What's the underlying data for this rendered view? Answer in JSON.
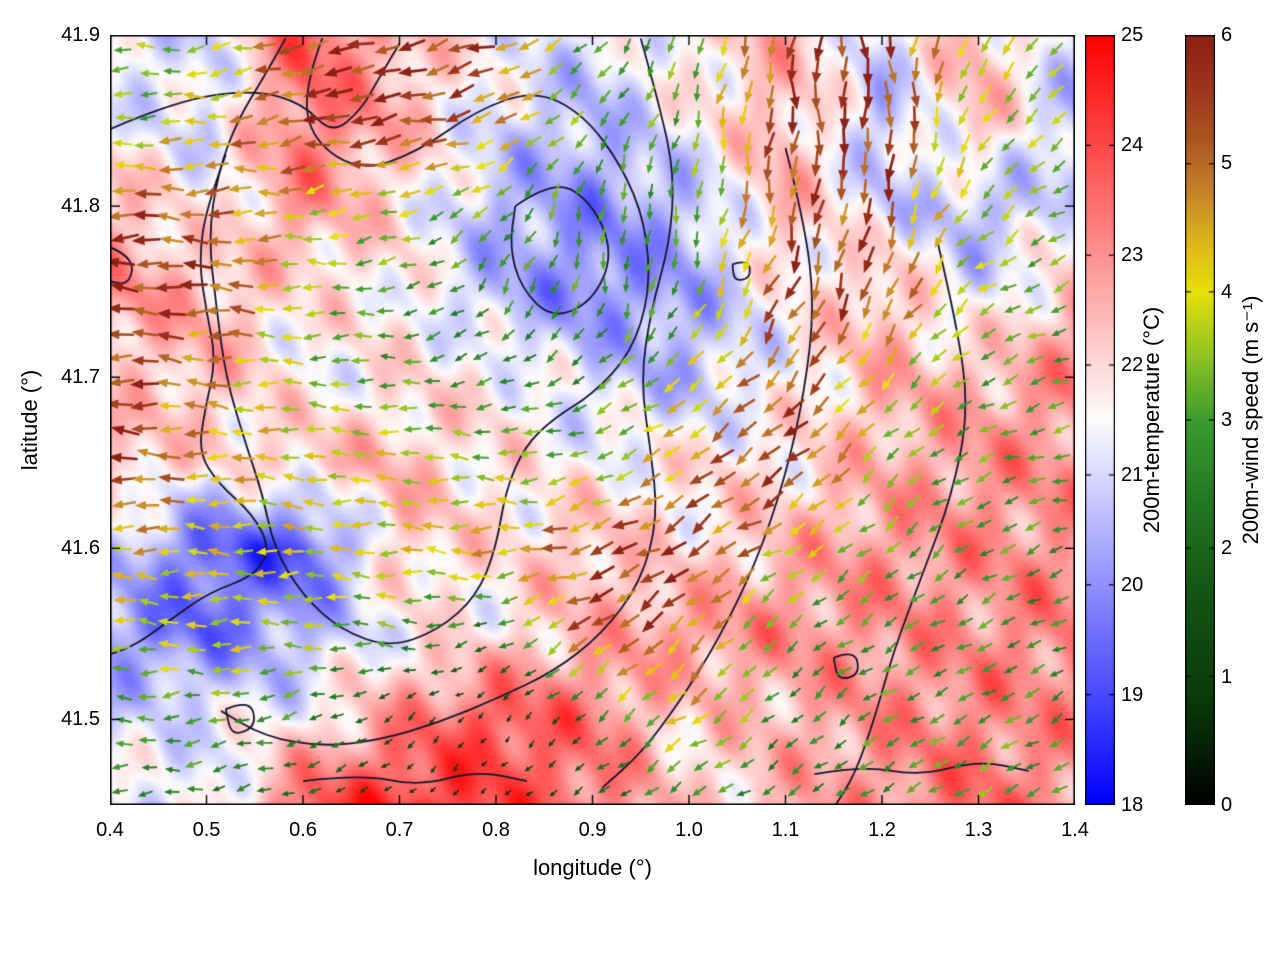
{
  "chart_data": {
    "type": "heatmap+quiver",
    "title": "",
    "xlabel": "longitude (°)",
    "ylabel": "latitude (°)",
    "x_range": [
      0.4,
      1.4
    ],
    "y_range": [
      41.45,
      41.9
    ],
    "x_ticks": [
      "0.4",
      "0.5",
      "0.6",
      "0.7",
      "0.8",
      "0.9",
      "1.0",
      "1.1",
      "1.2",
      "1.3",
      "1.4"
    ],
    "x_tick_values": [
      0.4,
      0.5,
      0.6,
      0.7,
      0.8,
      0.9,
      1.0,
      1.1,
      1.2,
      1.3,
      1.4
    ],
    "y_ticks": [
      "41.5",
      "41.6",
      "41.7",
      "41.8",
      "41.9"
    ],
    "y_tick_values": [
      41.5,
      41.6,
      41.7,
      41.8,
      41.9
    ],
    "grid_lon": [
      0.4,
      0.5,
      0.6,
      0.7,
      0.8,
      0.9,
      1.0,
      1.1,
      1.2,
      1.3,
      1.4
    ],
    "grid_lat": [
      41.9,
      41.85,
      41.8,
      41.75,
      41.7,
      41.65,
      41.6,
      41.55,
      41.5,
      41.45
    ],
    "temperature": {
      "label": "200m-temperature (°C)",
      "range": [
        18,
        25
      ],
      "ticks": [
        "18",
        "19",
        "20",
        "21",
        "22",
        "23",
        "24",
        "25"
      ],
      "tick_values": [
        18,
        19,
        20,
        21,
        22,
        23,
        24,
        25
      ],
      "grid": [
        [
          21.0,
          21.0,
          23.8,
          22.5,
          21.5,
          21.0,
          21.8,
          22.5,
          21.0,
          22.5,
          21.0
        ],
        [
          21.5,
          21.0,
          23.5,
          22.5,
          21.0,
          20.5,
          21.5,
          22.5,
          20.5,
          22.5,
          20.5
        ],
        [
          22.5,
          21.5,
          23.0,
          21.8,
          20.5,
          20.0,
          20.5,
          22.5,
          21.0,
          20.5,
          21.0
        ],
        [
          23.0,
          22.5,
          21.8,
          21.8,
          20.5,
          19.8,
          20.3,
          21.5,
          22.5,
          21.0,
          22.5
        ],
        [
          22.0,
          22.5,
          21.5,
          21.8,
          21.8,
          21.0,
          20.5,
          21.5,
          22.5,
          22.5,
          23.0
        ],
        [
          22.5,
          21.8,
          22.3,
          22.4,
          21.8,
          21.5,
          21.8,
          21.8,
          22.5,
          23.0,
          23.0
        ],
        [
          21.0,
          19.3,
          19.0,
          22.3,
          21.8,
          22.4,
          21.8,
          22.5,
          23.0,
          23.0,
          23.0
        ],
        [
          20.0,
          19.5,
          20.5,
          21.5,
          21.8,
          22.5,
          23.0,
          23.0,
          23.0,
          23.0,
          23.3
        ],
        [
          21.0,
          21.3,
          21.5,
          23.0,
          24.0,
          23.3,
          22.0,
          22.5,
          23.0,
          23.2,
          23.0
        ],
        [
          21.5,
          21.0,
          23.8,
          24.4,
          24.0,
          23.4,
          22.0,
          22.5,
          23.0,
          23.5,
          23.0
        ]
      ]
    },
    "wind": {
      "label": "200m-wind speed (m s⁻¹)",
      "range": [
        0,
        6
      ],
      "ticks": [
        "0",
        "1",
        "2",
        "3",
        "4",
        "5",
        "6"
      ],
      "tick_values": [
        0,
        1,
        2,
        3,
        4,
        5,
        6
      ],
      "color_stops": [
        [
          0.0,
          "#000000"
        ],
        [
          0.8,
          "#0a3a0a"
        ],
        [
          1.6,
          "#145214"
        ],
        [
          2.4,
          "#227a22"
        ],
        [
          3.0,
          "#3c9b2e"
        ],
        [
          3.5,
          "#8ec423"
        ],
        [
          4.0,
          "#e8e00a"
        ],
        [
          4.4,
          "#ddb31c"
        ],
        [
          4.8,
          "#c4802a"
        ],
        [
          5.2,
          "#aa5420"
        ],
        [
          5.6,
          "#9c341c"
        ],
        [
          6.0,
          "#8c2014"
        ]
      ],
      "u": [
        [
          -3.0,
          -3.5,
          -5.0,
          -5.5,
          -5.0,
          -2.0,
          -1.0,
          -1.0,
          0.0,
          -2.0,
          -2.5
        ],
        [
          -3.2,
          -4.0,
          -5.5,
          -5.8,
          -4.5,
          -2.0,
          -1.0,
          -0.5,
          0.5,
          -2.0,
          -3.0
        ],
        [
          -5.5,
          -5.0,
          -4.0,
          -3.5,
          -2.5,
          -0.5,
          -0.5,
          -1.0,
          -1.0,
          -2.5,
          -3.0
        ],
        [
          -5.8,
          -5.5,
          -3.5,
          -2.8,
          -1.5,
          -0.5,
          -1.0,
          -2.0,
          -2.0,
          -3.0,
          -3.0
        ],
        [
          -5.5,
          -4.5,
          -3.5,
          -3.0,
          -2.5,
          -2.5,
          -3.0,
          -3.5,
          -2.5,
          -2.8,
          -3.0
        ],
        [
          -5.8,
          -4.5,
          -4.0,
          -3.8,
          -3.5,
          -3.0,
          -4.0,
          -4.5,
          -2.5,
          -2.8,
          -3.0
        ],
        [
          -4.5,
          -4.0,
          -4.0,
          -4.0,
          -4.5,
          -5.0,
          -5.0,
          -3.5,
          -2.5,
          -2.5,
          -2.8
        ],
        [
          -3.5,
          -4.0,
          -3.5,
          -3.0,
          -2.0,
          -4.5,
          -3.5,
          -2.0,
          -2.5,
          -2.5,
          -2.5
        ],
        [
          -3.0,
          -3.0,
          -2.5,
          -1.0,
          -0.3,
          -1.5,
          -3.5,
          -2.0,
          -2.5,
          -2.5,
          -2.5
        ],
        [
          -2.5,
          -2.5,
          -2.0,
          -0.5,
          -0.4,
          -1.5,
          -2.5,
          -2.0,
          -2.5,
          -3.0,
          -2.5
        ]
      ],
      "v": [
        [
          0.0,
          -0.5,
          -1.5,
          -1.5,
          -2.0,
          -2.0,
          -3.0,
          -5.5,
          -5.8,
          -3.5,
          -2.5
        ],
        [
          0.0,
          -0.5,
          -1.0,
          -1.0,
          -1.5,
          -2.5,
          -3.0,
          -5.5,
          -5.8,
          -3.0,
          -2.0
        ],
        [
          0.0,
          0.0,
          -0.5,
          -1.0,
          -2.0,
          -3.0,
          -3.0,
          -5.0,
          -5.5,
          -2.5,
          -1.5
        ],
        [
          0.0,
          0.0,
          0.0,
          -0.5,
          -2.5,
          -3.0,
          -2.8,
          -5.0,
          -5.0,
          -2.0,
          -1.0
        ],
        [
          0.5,
          0.5,
          0.0,
          0.0,
          -1.0,
          -1.5,
          -2.5,
          -4.0,
          -3.0,
          -1.5,
          -1.0
        ],
        [
          0.0,
          0.0,
          0.5,
          0.5,
          0.0,
          -1.0,
          -2.5,
          -3.5,
          -2.5,
          -1.0,
          -0.5
        ],
        [
          0.0,
          0.0,
          0.0,
          0.5,
          0.0,
          -2.0,
          -3.0,
          -2.0,
          -2.0,
          -1.5,
          -1.0
        ],
        [
          0.5,
          0.0,
          0.0,
          0.5,
          -1.0,
          -3.0,
          -3.5,
          -2.0,
          -1.5,
          -1.5,
          -1.0
        ],
        [
          0.0,
          -0.5,
          -1.0,
          -1.0,
          -0.5,
          -1.5,
          -2.5,
          -1.5,
          -1.5,
          -1.5,
          -1.5
        ],
        [
          0.0,
          -0.5,
          -0.5,
          -0.5,
          -0.3,
          -1.0,
          -1.5,
          -1.5,
          -1.5,
          -1.5,
          -1.5
        ]
      ]
    },
    "contours": [
      [
        [
          0.4,
          41.845
        ],
        [
          0.47,
          41.862
        ],
        [
          0.55,
          41.868
        ],
        [
          0.6,
          41.86
        ],
        [
          0.63,
          41.842
        ],
        [
          0.66,
          41.856
        ],
        [
          0.68,
          41.876
        ],
        [
          0.7,
          41.895
        ]
      ],
      [
        [
          0.4,
          41.776
        ],
        [
          0.425,
          41.77
        ],
        [
          0.42,
          41.754
        ],
        [
          0.4,
          41.756
        ]
      ],
      [
        [
          0.62,
          41.898
        ],
        [
          0.6,
          41.868
        ],
        [
          0.61,
          41.838
        ],
        [
          0.66,
          41.82
        ],
        [
          0.72,
          41.832
        ],
        [
          0.78,
          41.856
        ],
        [
          0.84,
          41.868
        ],
        [
          0.89,
          41.854
        ],
        [
          0.93,
          41.824
        ],
        [
          0.955,
          41.79
        ],
        [
          0.96,
          41.75
        ],
        [
          0.94,
          41.714
        ],
        [
          0.9,
          41.69
        ],
        [
          0.86,
          41.676
        ],
        [
          0.83,
          41.66
        ],
        [
          0.81,
          41.634
        ],
        [
          0.8,
          41.6
        ],
        [
          0.78,
          41.572
        ],
        [
          0.74,
          41.552
        ],
        [
          0.69,
          41.542
        ],
        [
          0.64,
          41.552
        ],
        [
          0.6,
          41.572
        ],
        [
          0.57,
          41.6
        ],
        [
          0.558,
          41.632
        ],
        [
          0.54,
          41.662
        ],
        [
          0.52,
          41.7
        ],
        [
          0.51,
          41.742
        ],
        [
          0.502,
          41.782
        ],
        [
          0.512,
          41.82
        ],
        [
          0.532,
          41.85
        ],
        [
          0.56,
          41.876
        ],
        [
          0.582,
          41.898
        ]
      ],
      [
        [
          0.82,
          41.8
        ],
        [
          0.86,
          41.816
        ],
        [
          0.9,
          41.802
        ],
        [
          0.922,
          41.772
        ],
        [
          0.9,
          41.744
        ],
        [
          0.858,
          41.734
        ],
        [
          0.826,
          41.752
        ],
        [
          0.814,
          41.776
        ],
        [
          0.82,
          41.8
        ]
      ],
      [
        [
          0.95,
          41.898
        ],
        [
          0.97,
          41.858
        ],
        [
          0.985,
          41.818
        ],
        [
          0.98,
          41.778
        ],
        [
          0.96,
          41.738
        ],
        [
          0.95,
          41.698
        ],
        [
          0.96,
          41.658
        ],
        [
          0.968,
          41.618
        ],
        [
          0.95,
          41.58
        ],
        [
          0.91,
          41.55
        ],
        [
          0.86,
          41.528
        ],
        [
          0.8,
          41.512
        ],
        [
          0.74,
          41.498
        ],
        [
          0.68,
          41.488
        ],
        [
          0.62,
          41.484
        ],
        [
          0.56,
          41.49
        ],
        [
          0.515,
          41.505
        ]
      ],
      [
        [
          1.1,
          41.834
        ],
        [
          1.12,
          41.79
        ],
        [
          1.13,
          41.742
        ],
        [
          1.12,
          41.692
        ],
        [
          1.1,
          41.642
        ],
        [
          1.07,
          41.592
        ],
        [
          1.03,
          41.546
        ],
        [
          0.99,
          41.51
        ],
        [
          0.95,
          41.48
        ],
        [
          0.91,
          41.46
        ]
      ],
      [
        [
          1.258,
          41.778
        ],
        [
          1.278,
          41.73
        ],
        [
          1.29,
          41.68
        ],
        [
          1.272,
          41.63
        ],
        [
          1.242,
          41.585
        ],
        [
          1.212,
          41.54
        ],
        [
          1.192,
          41.5
        ],
        [
          1.172,
          41.468
        ],
        [
          1.152,
          41.45
        ]
      ],
      [
        [
          1.13,
          41.468
        ],
        [
          1.18,
          41.473
        ],
        [
          1.24,
          41.467
        ],
        [
          1.3,
          41.476
        ],
        [
          1.352,
          41.47
        ]
      ],
      [
        [
          0.52,
          41.506
        ],
        [
          0.545,
          41.512
        ],
        [
          0.552,
          41.496
        ],
        [
          0.526,
          41.49
        ],
        [
          0.52,
          41.506
        ]
      ],
      [
        [
          1.15,
          41.536
        ],
        [
          1.172,
          41.541
        ],
        [
          1.177,
          41.526
        ],
        [
          1.154,
          41.523
        ],
        [
          1.15,
          41.536
        ]
      ],
      [
        [
          1.045,
          41.766
        ],
        [
          1.062,
          41.769
        ],
        [
          1.064,
          41.758
        ],
        [
          1.047,
          41.756
        ],
        [
          1.045,
          41.766
        ]
      ],
      [
        [
          0.6,
          41.464
        ],
        [
          0.66,
          41.468
        ],
        [
          0.72,
          41.461
        ],
        [
          0.78,
          41.47
        ],
        [
          0.832,
          41.464
        ]
      ],
      [
        [
          0.52,
          41.83
        ],
        [
          0.5,
          41.8
        ],
        [
          0.492,
          41.768
        ],
        [
          0.5,
          41.738
        ],
        [
          0.51,
          41.71
        ],
        [
          0.498,
          41.68
        ],
        [
          0.492,
          41.656
        ],
        [
          0.512,
          41.638
        ],
        [
          0.548,
          41.62
        ],
        [
          0.566,
          41.6
        ],
        [
          0.55,
          41.584
        ],
        [
          0.502,
          41.574
        ],
        [
          0.462,
          41.558
        ],
        [
          0.428,
          41.544
        ],
        [
          0.4,
          41.538
        ]
      ]
    ]
  }
}
